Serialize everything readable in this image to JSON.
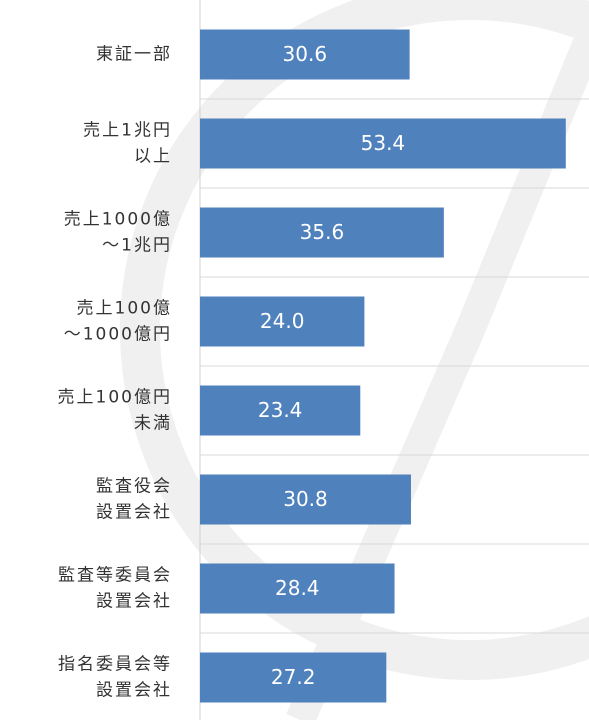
{
  "chart_data": {
    "type": "bar",
    "orientation": "horizontal",
    "categories": [
      [
        "東証一部"
      ],
      [
        "売上1兆円",
        "以上"
      ],
      [
        "売上1000億",
        "〜1兆円"
      ],
      [
        "売上100億",
        "〜1000億円"
      ],
      [
        "売上100億円",
        "未満"
      ],
      [
        "監査役会",
        "設置会社"
      ],
      [
        "監査等委員会",
        "設置会社"
      ],
      [
        "指名委員会等",
        "設置会社"
      ]
    ],
    "values": [
      30.6,
      53.4,
      35.6,
      24.0,
      23.4,
      30.8,
      28.4,
      27.2
    ],
    "value_labels": [
      "30.6",
      "53.4",
      "35.6",
      "24.0",
      "23.4",
      "30.8",
      "28.4",
      "27.2"
    ],
    "color": "#4f81bd"
  }
}
